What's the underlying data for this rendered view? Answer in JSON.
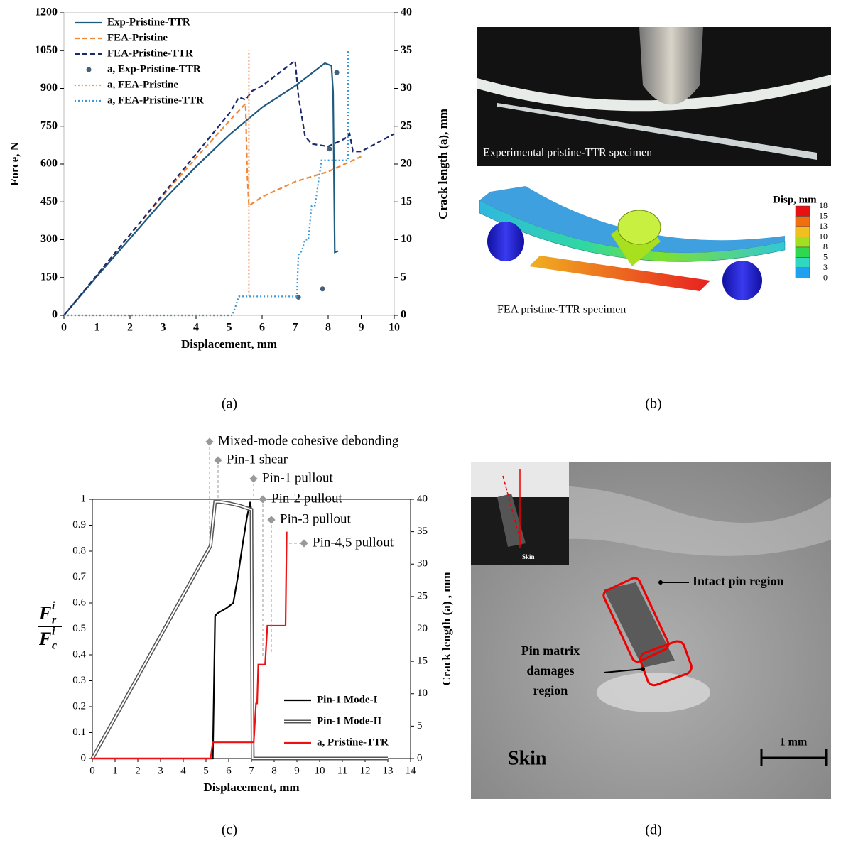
{
  "chart_data": [
    {
      "type": "line",
      "panel": "(a)",
      "xlabel": "Displacement, mm",
      "ylabel": "Force, N",
      "y2label": "Crack length (a), mm",
      "xlim": [
        0,
        10
      ],
      "xticks": [
        0,
        1,
        2,
        3,
        4,
        5,
        6,
        7,
        8,
        9,
        10
      ],
      "ylim": [
        0,
        1200
      ],
      "yticks": [
        0,
        150,
        300,
        450,
        600,
        750,
        900,
        1050,
        1200
      ],
      "y2lim": [
        0,
        40
      ],
      "y2ticks": [
        0,
        5,
        10,
        15,
        20,
        25,
        30,
        35,
        40
      ],
      "legend": "upper left",
      "series": [
        {
          "name": "Exp-Pristine-TTR",
          "color": "#1f5a80",
          "style": "solid",
          "x": [
            0,
            1,
            2,
            3,
            4,
            5,
            6,
            7,
            7.5,
            7.9,
            8.1,
            8.15,
            8.2,
            8.3
          ],
          "values": [
            0,
            155,
            305,
            455,
            590,
            715,
            825,
            910,
            960,
            1000,
            990,
            885,
            250,
            255
          ]
        },
        {
          "name": "FEA-Pristine",
          "color": "#f0883a",
          "style": "dashed",
          "x": [
            0,
            1,
            2,
            3,
            4,
            5,
            5.5,
            5.55,
            5.6,
            6,
            7,
            8,
            9
          ],
          "values": [
            0,
            160,
            320,
            475,
            625,
            770,
            840,
            560,
            435,
            470,
            530,
            570,
            630
          ]
        },
        {
          "name": "FEA-Pristine-TTR",
          "color": "#1a2a6c",
          "style": "dashed",
          "x": [
            0,
            1,
            2,
            3,
            4,
            5,
            5.3,
            5.5,
            5.7,
            6,
            6.5,
            7,
            7.1,
            7.3,
            7.5,
            8,
            8.5,
            8.65,
            8.75,
            9,
            10
          ],
          "values": [
            0,
            160,
            320,
            480,
            640,
            800,
            865,
            855,
            890,
            910,
            960,
            1010,
            870,
            710,
            680,
            670,
            700,
            720,
            650,
            650,
            720
          ]
        },
        {
          "name": "a, Exp-Pristine-TTR",
          "color": "#45607a",
          "style": "dots",
          "axis": "y2",
          "x": [
            7.1,
            7.83,
            8.04,
            8.26
          ],
          "values": [
            2.4,
            3.5,
            22,
            32.1
          ]
        },
        {
          "name": "a, FEA-Pristine",
          "color": "#f4a070",
          "style": "dotted",
          "axis": "y2",
          "x": [
            0,
            5.1,
            5.3,
            5.6,
            5.6
          ],
          "values": [
            0,
            0,
            2.5,
            2.5,
            35
          ]
        },
        {
          "name": "a, FEA-Pristine-TTR",
          "color": "#3a9ad9",
          "style": "dotted",
          "axis": "y2",
          "x": [
            0,
            5.1,
            5.3,
            7.05,
            7.1,
            7.2,
            7.3,
            7.4,
            7.5,
            7.6,
            7.8,
            7.9,
            8.6,
            8.6
          ],
          "values": [
            0,
            0,
            2.5,
            2.5,
            8,
            8.5,
            10,
            10,
            14.5,
            14.5,
            20.5,
            20.5,
            20.5,
            35
          ]
        }
      ]
    },
    {
      "type": "line",
      "panel": "(c)",
      "xlabel": "Displacement, mm",
      "y2label": "Crack length (a) , mm",
      "ylabel_num": "F",
      "ylabel_num_sub": "r",
      "ylabel_num_sup": "i",
      "ylabel_den": "F",
      "ylabel_den_sub": "c",
      "ylabel_den_sup": "i",
      "xlim": [
        0,
        14
      ],
      "xticks": [
        0,
        1,
        2,
        3,
        4,
        5,
        6,
        7,
        8,
        9,
        10,
        11,
        12,
        13,
        14
      ],
      "ylim": [
        0,
        1
      ],
      "yticks": [
        0,
        0.1,
        0.2,
        0.3,
        0.4,
        0.5,
        0.6,
        0.7,
        0.8,
        0.9,
        1
      ],
      "y2lim": [
        0,
        40
      ],
      "y2ticks": [
        0,
        5,
        10,
        15,
        20,
        25,
        30,
        35,
        40
      ],
      "legend": "lower right",
      "annotations": [
        "Mixed-mode cohesive debonding",
        "Pin-1 shear",
        "Pin-1 pullout",
        "Pin-2 pullout",
        "Pin-3 pullout",
        "Pin-4,5 pullout"
      ],
      "series": [
        {
          "name": "Pin-1  Mode-I",
          "color": "#000000",
          "style": "solid",
          "x": [
            0,
            5.3,
            5.4,
            5.5,
            5.7,
            5.9,
            6.2,
            6.4,
            6.6,
            6.8,
            6.95,
            7.0,
            7.1,
            13
          ],
          "values": [
            0,
            0,
            0.55,
            0.56,
            0.57,
            0.58,
            0.6,
            0.7,
            0.82,
            0.93,
            0.99,
            0.95,
            0,
            0
          ]
        },
        {
          "name": "Pin-1  Mode-II",
          "color": "#555555",
          "style": "double",
          "x": [
            0,
            5.2,
            5.4,
            5.6,
            6,
            6.5,
            7,
            7.05,
            13
          ],
          "values": [
            0,
            0.82,
            0.99,
            0.99,
            0.985,
            0.975,
            0.96,
            0,
            0
          ]
        },
        {
          "name": "a, Pristine-TTR",
          "color": "#ee1111",
          "style": "solid",
          "axis": "y2",
          "x": [
            0,
            5.2,
            5.3,
            7.1,
            7.2,
            7.25,
            7.3,
            7.6,
            7.7,
            8.5,
            8.55
          ],
          "values": [
            0,
            0,
            2.5,
            2.5,
            8.5,
            8.5,
            14.5,
            14.5,
            20.5,
            20.5,
            35
          ]
        }
      ]
    }
  ],
  "panel_b": {
    "label": "(b)",
    "photo_caption": "Experimental pristine-TTR specimen",
    "fea_caption": "FEA pristine-TTR specimen",
    "colorbar_title": "Disp, mm",
    "colorbar_ticks": [
      18,
      15,
      13,
      10,
      8,
      5,
      3,
      0
    ]
  },
  "panel_d": {
    "label": "(d)",
    "inset_label": "Skin",
    "intact": "Intact pin region",
    "damage": [
      "Pin matrix",
      "damages",
      "region"
    ],
    "skin": "Skin",
    "scale": "1 mm"
  }
}
